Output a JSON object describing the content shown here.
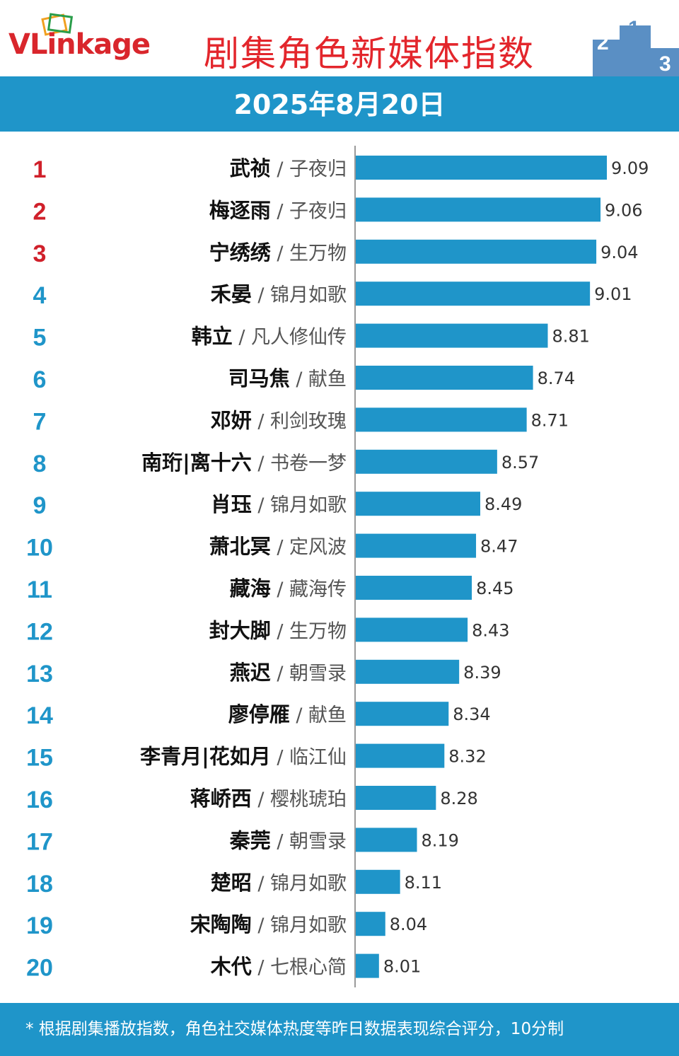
{
  "header": {
    "logo_v": "V",
    "logo_rest": "Linkage",
    "title": "剧集角色新媒体指数",
    "podium_digits": [
      "2",
      "1",
      "3"
    ]
  },
  "date": "2025年8月20日",
  "footer": "* 根据剧集播放指数，角色社交媒体热度等昨日数据表现综合评分，10分制",
  "colors": {
    "accent": "#1f95c9",
    "title_red": "#e3262c",
    "rank_red": "#d0202a",
    "rank_blue": "#1f95c9",
    "bar": "#1f95c9"
  },
  "chart_data": {
    "type": "bar",
    "orientation": "horizontal",
    "title": "剧集角色新媒体指数",
    "xlim": [
      7.9,
      9.2
    ],
    "rows": [
      {
        "rank": "1",
        "name": "武祯",
        "drama": "子夜归",
        "value": 9.09
      },
      {
        "rank": "2",
        "name": "梅逐雨",
        "drama": "子夜归",
        "value": 9.06
      },
      {
        "rank": "3",
        "name": "宁绣绣",
        "drama": "生万物",
        "value": 9.04
      },
      {
        "rank": "4",
        "name": "禾晏",
        "drama": "锦月如歌",
        "value": 9.01
      },
      {
        "rank": "5",
        "name": "韩立",
        "drama": "凡人修仙传",
        "value": 8.81
      },
      {
        "rank": "6",
        "name": "司马焦",
        "drama": "献鱼",
        "value": 8.74
      },
      {
        "rank": "7",
        "name": "邓妍",
        "drama": "利剑玫瑰",
        "value": 8.71
      },
      {
        "rank": "8",
        "name": "南珩|离十六",
        "drama": "书卷一梦",
        "value": 8.57
      },
      {
        "rank": "9",
        "name": "肖珏",
        "drama": "锦月如歌",
        "value": 8.49
      },
      {
        "rank": "10",
        "name": "萧北冥",
        "drama": "定风波",
        "value": 8.47
      },
      {
        "rank": "11",
        "name": "藏海",
        "drama": "藏海传",
        "value": 8.45
      },
      {
        "rank": "12",
        "name": "封大脚",
        "drama": "生万物",
        "value": 8.43
      },
      {
        "rank": "13",
        "name": "燕迟",
        "drama": "朝雪录",
        "value": 8.39
      },
      {
        "rank": "14",
        "name": "廖停雁",
        "drama": "献鱼",
        "value": 8.34
      },
      {
        "rank": "15",
        "name": "李青月|花如月",
        "drama": "临江仙",
        "value": 8.32
      },
      {
        "rank": "16",
        "name": "蒋峤西",
        "drama": "樱桃琥珀",
        "value": 8.28
      },
      {
        "rank": "17",
        "name": "秦莞",
        "drama": "朝雪录",
        "value": 8.19
      },
      {
        "rank": "18",
        "name": "楚昭",
        "drama": "锦月如歌",
        "value": 8.11
      },
      {
        "rank": "19",
        "name": "宋陶陶",
        "drama": "锦月如歌",
        "value": 8.04
      },
      {
        "rank": "20",
        "name": "木代",
        "drama": "七根心简",
        "value": 8.01
      }
    ]
  }
}
